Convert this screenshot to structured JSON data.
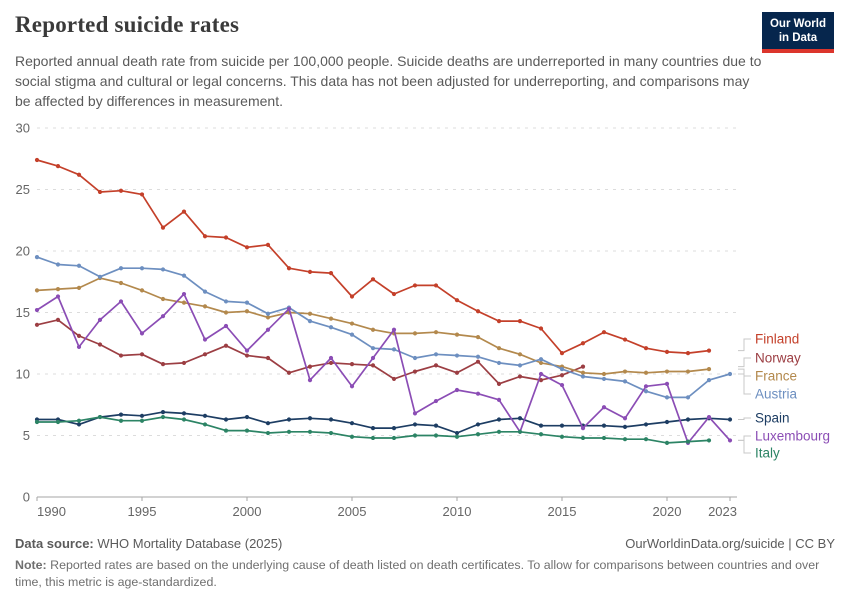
{
  "header": {
    "title": "Reported suicide rates",
    "subtitle": "Reported annual death rate from suicide per 100,000 people. Suicide deaths are underreported in many countries due to social stigma and cultural or legal concerns. This data has not been adjusted for underreporting, and comparisons may be affected by differences in measurement.",
    "logo": {
      "line1": "Our World",
      "line2": "in Data",
      "bg_color": "#06264d",
      "accent_color": "#dc352c"
    }
  },
  "chart_data": {
    "type": "line",
    "title": "Reported suicide rates",
    "unit": "deaths per 100,000 people",
    "xlim": [
      1990,
      2023
    ],
    "ylim": [
      0,
      30
    ],
    "x_ticks": [
      1990,
      1995,
      2000,
      2005,
      2010,
      2015,
      2020,
      2023
    ],
    "y_ticks": [
      0,
      5,
      10,
      15,
      20,
      25,
      30
    ],
    "grid": "horizontal-dashed",
    "legend_position": "right-of-lines",
    "series": [
      {
        "name": "Finland",
        "color": "#c4402a",
        "start_year": 1990,
        "end_year": 2022,
        "values": [
          27.4,
          26.9,
          26.2,
          24.8,
          24.9,
          24.6,
          21.9,
          23.2,
          21.2,
          21.1,
          20.3,
          20.5,
          18.6,
          18.3,
          18.2,
          16.3,
          17.7,
          16.5,
          17.2,
          17.2,
          16.0,
          15.1,
          14.3,
          14.3,
          13.7,
          11.7,
          12.5,
          13.4,
          12.8,
          12.1,
          11.8,
          11.7,
          11.9
        ]
      },
      {
        "name": "Norway",
        "color": "#9c3e43",
        "start_year": 1990,
        "end_year": 2016,
        "values": [
          14.0,
          14.4,
          13.1,
          12.4,
          11.5,
          11.6,
          10.8,
          10.9,
          11.6,
          12.3,
          11.5,
          11.3,
          10.1,
          10.6,
          10.9,
          10.8,
          10.7,
          9.6,
          10.2,
          10.7,
          10.1,
          11.0,
          9.2,
          9.8,
          9.5,
          9.9,
          10.6
        ]
      },
      {
        "name": "France",
        "color": "#b3894d",
        "start_year": 1990,
        "end_year": 2022,
        "values": [
          16.8,
          16.9,
          17.0,
          17.8,
          17.4,
          16.8,
          16.1,
          15.8,
          15.5,
          15.0,
          15.1,
          14.6,
          15.0,
          14.9,
          14.5,
          14.1,
          13.6,
          13.3,
          13.3,
          13.4,
          13.2,
          13.0,
          12.1,
          11.6,
          10.9,
          10.6,
          10.1,
          10.0,
          10.2,
          10.1,
          10.2,
          10.2,
          10.4
        ]
      },
      {
        "name": "Austria",
        "color": "#6d8fc0",
        "start_year": 1990,
        "end_year": 2023,
        "values": [
          19.5,
          18.9,
          18.8,
          17.9,
          18.6,
          18.6,
          18.5,
          18.0,
          16.7,
          15.9,
          15.8,
          14.9,
          15.4,
          14.3,
          13.8,
          13.2,
          12.1,
          12.0,
          11.3,
          11.6,
          11.5,
          11.4,
          10.9,
          10.7,
          11.2,
          10.4,
          9.8,
          9.6,
          9.4,
          8.6,
          8.1,
          8.1,
          9.5,
          10.0
        ]
      },
      {
        "name": "Spain",
        "color": "#1d3d63",
        "start_year": 1990,
        "end_year": 2023,
        "values": [
          6.3,
          6.3,
          5.9,
          6.5,
          6.7,
          6.6,
          6.9,
          6.8,
          6.6,
          6.3,
          6.5,
          6.0,
          6.3,
          6.4,
          6.3,
          6.0,
          5.6,
          5.6,
          5.9,
          5.8,
          5.2,
          5.9,
          6.3,
          6.4,
          5.8,
          5.8,
          5.8,
          5.8,
          5.7,
          5.9,
          6.1,
          6.3,
          6.4,
          6.3
        ]
      },
      {
        "name": "Luxembourg",
        "color": "#8b4db5",
        "start_year": 1990,
        "end_year": 2023,
        "values": [
          15.2,
          16.3,
          12.2,
          14.4,
          15.9,
          13.3,
          14.7,
          16.5,
          12.8,
          13.9,
          11.9,
          13.6,
          15.3,
          9.5,
          11.3,
          9.0,
          11.3,
          13.6,
          6.8,
          7.8,
          8.7,
          8.4,
          7.9,
          5.3,
          10.0,
          9.1,
          5.6,
          7.3,
          6.4,
          9.0,
          9.2,
          4.4,
          6.5,
          4.6
        ]
      },
      {
        "name": "Italy",
        "color": "#2c8465",
        "start_year": 1990,
        "end_year": 2022,
        "values": [
          6.1,
          6.1,
          6.2,
          6.5,
          6.2,
          6.2,
          6.5,
          6.3,
          5.9,
          5.4,
          5.4,
          5.2,
          5.3,
          5.3,
          5.2,
          4.9,
          4.8,
          4.8,
          5.0,
          5.0,
          4.9,
          5.1,
          5.3,
          5.3,
          5.1,
          4.9,
          4.8,
          4.8,
          4.7,
          4.7,
          4.4,
          4.5,
          4.6
        ]
      }
    ],
    "colors": {
      "grid": "#dcdcdc",
      "axis": "#a6a6a6",
      "tick_label": "#666666"
    }
  },
  "footer": {
    "datasource_label": "Data source:",
    "datasource_value": " WHO Mortality Database (2025)",
    "rights": "OurWorldinData.org/suicide | CC BY",
    "note_label": "Note:",
    "note_value": " Reported rates are based on the underlying cause of death listed on death certificates. To allow for comparisons between countries and over time, this metric is age-standardized."
  }
}
